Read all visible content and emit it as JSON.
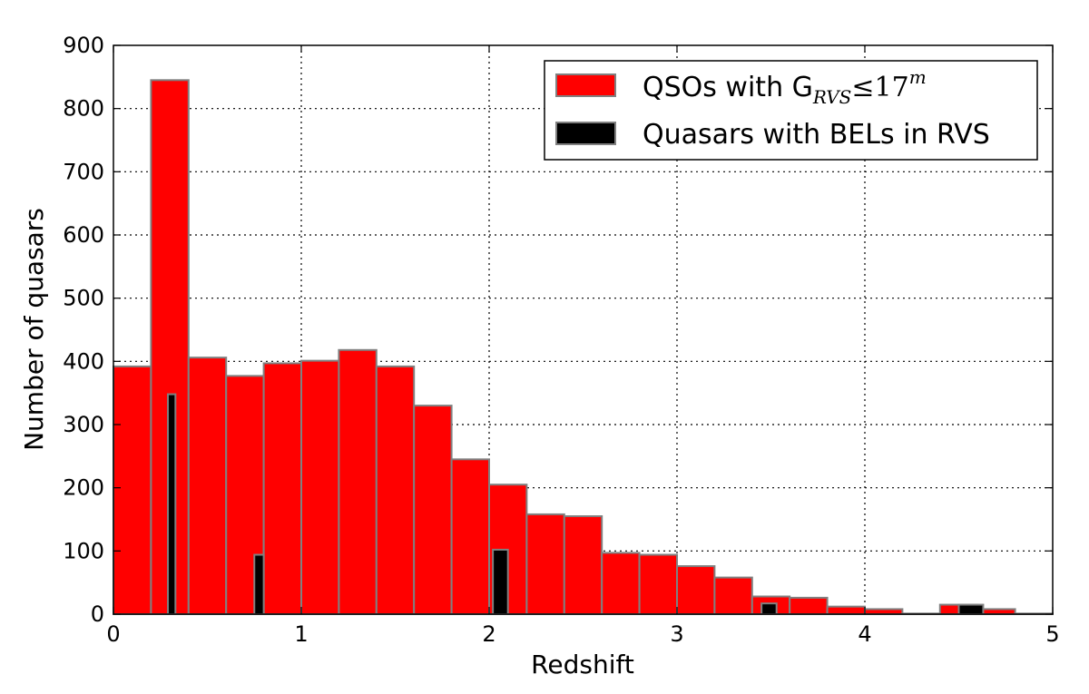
{
  "chart_data": {
    "type": "bar",
    "xlabel": "Redshift",
    "ylabel": "Number of quasars",
    "xlim": [
      0,
      5
    ],
    "ylim": [
      0,
      900
    ],
    "xticks": [
      "0",
      "1",
      "2",
      "3",
      "4",
      "5"
    ],
    "yticks": [
      "0",
      "100",
      "200",
      "300",
      "400",
      "500",
      "600",
      "700",
      "800",
      "900"
    ],
    "grid": true,
    "legend_position": "top-right",
    "legend": {
      "entry1": {
        "main": "QSOs with G",
        "sub": "RVS",
        "leq": "≤17",
        "sup": "m"
      },
      "entry2": {
        "text": "Quasars with BELs in RVS"
      }
    },
    "series": [
      {
        "id": "qsos",
        "color": "#ff0000",
        "edge": "#808080",
        "bin_width": 0.2,
        "bin_starts": [
          0.0,
          0.2,
          0.4,
          0.6,
          0.8,
          1.0,
          1.2,
          1.4,
          1.6,
          1.8,
          2.0,
          2.2,
          2.4,
          2.6,
          2.8,
          3.0,
          3.2,
          3.4,
          3.6,
          3.8,
          4.0,
          4.2,
          4.4,
          4.6,
          4.8
        ],
        "values": [
          392,
          845,
          406,
          377,
          397,
          401,
          418,
          392,
          330,
          245,
          205,
          158,
          155,
          97,
          94,
          76,
          58,
          28,
          26,
          12,
          8,
          1,
          15,
          8,
          1
        ]
      },
      {
        "id": "bels",
        "color": "#000000",
        "edge": "#808080",
        "bins": [
          {
            "x0": 0.29,
            "x1": 0.33,
            "value": 348
          },
          {
            "x0": 0.75,
            "x1": 0.8,
            "value": 94
          },
          {
            "x0": 2.02,
            "x1": 2.1,
            "value": 102
          },
          {
            "x0": 3.45,
            "x1": 3.53,
            "value": 17
          },
          {
            "x0": 4.5,
            "x1": 4.63,
            "value": 15
          }
        ]
      }
    ]
  }
}
